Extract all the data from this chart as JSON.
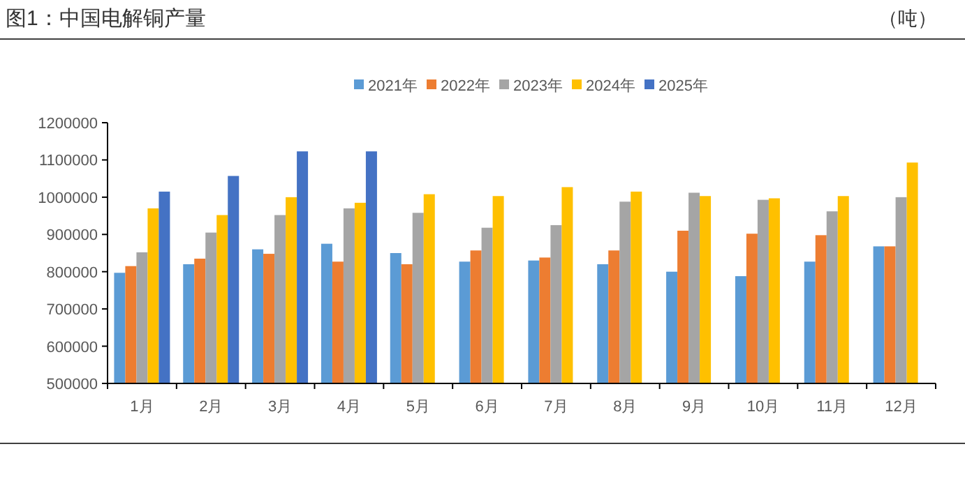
{
  "chart_data": {
    "type": "bar",
    "title": "图1：中国电解铜产量",
    "annotations": [
      "（吨）"
    ],
    "categories": [
      "1月",
      "2月",
      "3月",
      "4月",
      "5月",
      "6月",
      "7月",
      "8月",
      "9月",
      "10月",
      "11月",
      "12月"
    ],
    "series": [
      {
        "name": "2021年",
        "color": "#5b9bd5",
        "values": [
          797000,
          820000,
          860000,
          875000,
          850000,
          827000,
          830000,
          820000,
          800000,
          788000,
          827000,
          868000
        ]
      },
      {
        "name": "2022年",
        "color": "#ed7d31",
        "values": [
          815000,
          835000,
          848000,
          827000,
          820000,
          857000,
          838000,
          857000,
          910000,
          902000,
          898000,
          868000
        ]
      },
      {
        "name": "2023年",
        "color": "#a5a5a5",
        "values": [
          852000,
          905000,
          952000,
          970000,
          958000,
          918000,
          925000,
          988000,
          1012000,
          993000,
          962000,
          1000000
        ]
      },
      {
        "name": "2024年",
        "color": "#ffc000",
        "values": [
          970000,
          952000,
          1000000,
          985000,
          1008000,
          1003000,
          1027000,
          1015000,
          1003000,
          997000,
          1003000,
          1093000
        ]
      },
      {
        "name": "2025年",
        "color": "#4472c4",
        "values": [
          1015000,
          1057000,
          1123000,
          1123000,
          null,
          null,
          null,
          null,
          null,
          null,
          null,
          null
        ]
      }
    ],
    "ylim": [
      500000,
      1200000
    ],
    "yticks": [
      500000,
      600000,
      700000,
      800000,
      900000,
      1000000,
      1100000,
      1200000
    ],
    "grid": false,
    "legend": "top"
  }
}
